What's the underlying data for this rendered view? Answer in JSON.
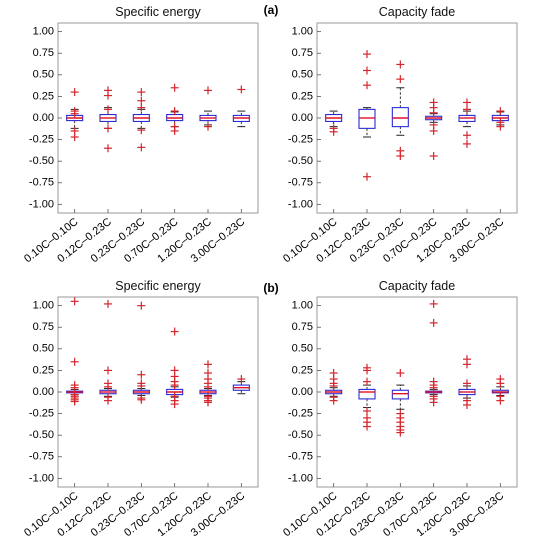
{
  "panel_labels": [
    "(a)",
    "(b)"
  ],
  "chart_data": [
    {
      "type": "boxplot",
      "title": "Specific energy",
      "panel": "a",
      "categories": [
        "0.10C–0.10C",
        "0.12C–0.23C",
        "0.23C–0.23C",
        "0.70C–0.23C",
        "1.20C–0.23C",
        "3.00C–0.23C"
      ],
      "ylim": [
        -1.1,
        1.1
      ],
      "yticks": [
        "1.00",
        "0.75",
        "0.50",
        "0.25",
        "0.00",
        "-0.25",
        "-0.50",
        "-0.75",
        "-1.00"
      ],
      "boxes": [
        {
          "q1": -0.03,
          "median": 0.0,
          "q3": 0.03,
          "whisker_low": -0.12,
          "whisker_high": 0.1,
          "outliers": [
            0.3,
            0.08,
            0.05,
            -0.15,
            -0.22
          ]
        },
        {
          "q1": -0.04,
          "median": 0.0,
          "q3": 0.04,
          "whisker_low": -0.12,
          "whisker_high": 0.12,
          "outliers": [
            0.32,
            0.26,
            0.1,
            -0.12,
            -0.35
          ]
        },
        {
          "q1": -0.04,
          "median": 0.0,
          "q3": 0.04,
          "whisker_low": -0.12,
          "whisker_high": 0.1,
          "outliers": [
            0.3,
            0.2,
            0.12,
            -0.14,
            -0.34
          ]
        },
        {
          "q1": -0.03,
          "median": 0.0,
          "q3": 0.04,
          "whisker_low": -0.1,
          "whisker_high": 0.07,
          "outliers": [
            0.35,
            0.08,
            -0.1,
            -0.15
          ]
        },
        {
          "q1": -0.03,
          "median": 0.0,
          "q3": 0.03,
          "whisker_low": -0.08,
          "whisker_high": 0.08,
          "outliers": [
            0.32,
            -0.1
          ]
        },
        {
          "q1": -0.04,
          "median": 0.0,
          "q3": 0.03,
          "whisker_low": -0.1,
          "whisker_high": 0.08,
          "outliers": [
            0.33
          ]
        }
      ]
    },
    {
      "type": "boxplot",
      "title": "Capacity fade",
      "panel": "a",
      "categories": [
        "0.10C–0.10C",
        "0.12C–0.23C",
        "0.23C–0.23C",
        "0.70C–0.23C",
        "1.20C–0.23C",
        "3.00C–0.23C"
      ],
      "ylim": [
        -1.1,
        1.1
      ],
      "yticks": [
        "1.00",
        "0.75",
        "0.50",
        "0.25",
        "0.00",
        "-0.25",
        "-0.50",
        "-0.75",
        "-1.00"
      ],
      "boxes": [
        {
          "q1": -0.04,
          "median": 0.0,
          "q3": 0.04,
          "whisker_low": -0.1,
          "whisker_high": 0.08,
          "outliers": [
            -0.12,
            -0.16
          ]
        },
        {
          "q1": -0.12,
          "median": 0.0,
          "q3": 0.1,
          "whisker_low": -0.22,
          "whisker_high": 0.12,
          "outliers": [
            0.74,
            0.55,
            0.38,
            -0.68
          ]
        },
        {
          "q1": -0.1,
          "median": 0.0,
          "q3": 0.12,
          "whisker_low": -0.2,
          "whisker_high": 0.35,
          "outliers": [
            0.62,
            0.45,
            -0.38,
            -0.44
          ]
        },
        {
          "q1": -0.02,
          "median": 0.0,
          "q3": 0.02,
          "whisker_low": -0.05,
          "whisker_high": 0.05,
          "outliers": [
            0.18,
            0.12,
            0.06,
            -0.08,
            -0.15,
            -0.44
          ]
        },
        {
          "q1": -0.04,
          "median": 0.0,
          "q3": 0.03,
          "whisker_low": -0.1,
          "whisker_high": 0.08,
          "outliers": [
            0.18,
            0.1,
            -0.2,
            -0.3
          ]
        },
        {
          "q1": -0.03,
          "median": 0.0,
          "q3": 0.03,
          "whisker_low": -0.08,
          "whisker_high": 0.07,
          "outliers": [
            0.08,
            -0.05,
            -0.1
          ]
        }
      ]
    },
    {
      "type": "boxplot",
      "title": "Specific energy",
      "panel": "b",
      "categories": [
        "0.10C–0.10C",
        "0.12C–0.23C",
        "0.23C–0.23C",
        "0.70C–0.23C",
        "1.20C–0.23C",
        "3.00C–0.23C"
      ],
      "ylim": [
        -1.1,
        1.1
      ],
      "yticks": [
        "1.00",
        "0.75",
        "0.50",
        "0.25",
        "0.00",
        "-0.25",
        "-0.50",
        "-0.75",
        "-1.00"
      ],
      "boxes": [
        {
          "q1": -0.01,
          "median": 0.0,
          "q3": 0.01,
          "whisker_low": -0.03,
          "whisker_high": 0.03,
          "outliers": [
            1.05,
            0.35,
            0.08,
            0.05,
            -0.03,
            -0.05,
            -0.07,
            -0.09,
            -0.11
          ]
        },
        {
          "q1": -0.02,
          "median": 0.0,
          "q3": 0.02,
          "whisker_low": -0.05,
          "whisker_high": 0.04,
          "outliers": [
            1.02,
            0.25,
            0.1,
            0.06,
            -0.06,
            -0.1
          ]
        },
        {
          "q1": -0.02,
          "median": 0.0,
          "q3": 0.02,
          "whisker_low": -0.04,
          "whisker_high": 0.04,
          "outliers": [
            1.0,
            0.2,
            0.1,
            0.07,
            -0.07,
            -0.09
          ]
        },
        {
          "q1": -0.03,
          "median": 0.0,
          "q3": 0.03,
          "whisker_low": -0.06,
          "whisker_high": 0.06,
          "outliers": [
            0.7,
            0.25,
            0.18,
            0.12,
            0.08,
            -0.05,
            -0.1,
            -0.14
          ]
        },
        {
          "q1": -0.02,
          "median": 0.0,
          "q3": 0.02,
          "whisker_low": -0.04,
          "whisker_high": 0.04,
          "outliers": [
            0.32,
            0.22,
            0.15,
            0.1,
            0.06,
            -0.05,
            -0.07,
            -0.1,
            -0.12
          ]
        },
        {
          "q1": 0.02,
          "median": 0.05,
          "q3": 0.08,
          "whisker_low": -0.02,
          "whisker_high": 0.12,
          "outliers": [
            0.15
          ]
        }
      ]
    },
    {
      "type": "boxplot",
      "title": "Capacity fade",
      "panel": "b",
      "categories": [
        "0.10C–0.10C",
        "0.12C–0.23C",
        "0.23C–0.23C",
        "0.70C–0.23C",
        "1.20C–0.23C",
        "3.00C–0.23C"
      ],
      "ylim": [
        -1.1,
        1.1
      ],
      "yticks": [
        "1.00",
        "0.75",
        "0.50",
        "0.25",
        "0.00",
        "-0.25",
        "-0.50",
        "-0.75",
        "-1.00"
      ],
      "boxes": [
        {
          "q1": -0.02,
          "median": 0.0,
          "q3": 0.02,
          "whisker_low": -0.05,
          "whisker_high": 0.05,
          "outliers": [
            0.22,
            0.15,
            0.1,
            0.07,
            -0.06,
            -0.1
          ]
        },
        {
          "q1": -0.08,
          "median": 0.0,
          "q3": 0.03,
          "whisker_low": -0.18,
          "whisker_high": 0.08,
          "outliers": [
            0.28,
            0.25,
            0.12,
            -0.22,
            -0.3,
            -0.35,
            -0.4
          ]
        },
        {
          "q1": -0.08,
          "median": -0.02,
          "q3": 0.02,
          "whisker_low": -0.2,
          "whisker_high": 0.08,
          "outliers": [
            0.22,
            -0.25,
            -0.3,
            -0.35,
            -0.4,
            -0.44,
            -0.47
          ]
        },
        {
          "q1": -0.01,
          "median": 0.0,
          "q3": 0.01,
          "whisker_low": -0.03,
          "whisker_high": 0.03,
          "outliers": [
            1.02,
            0.8,
            0.12,
            0.08,
            0.05,
            -0.05,
            -0.08,
            -0.12
          ]
        },
        {
          "q1": -0.03,
          "median": 0.0,
          "q3": 0.03,
          "whisker_low": -0.07,
          "whisker_high": 0.07,
          "outliers": [
            0.38,
            0.32,
            0.1,
            -0.1,
            -0.15
          ]
        },
        {
          "q1": -0.01,
          "median": 0.0,
          "q3": 0.02,
          "whisker_low": -0.04,
          "whisker_high": 0.06,
          "outliers": [
            0.15,
            0.1,
            -0.05,
            -0.1
          ]
        }
      ]
    }
  ]
}
